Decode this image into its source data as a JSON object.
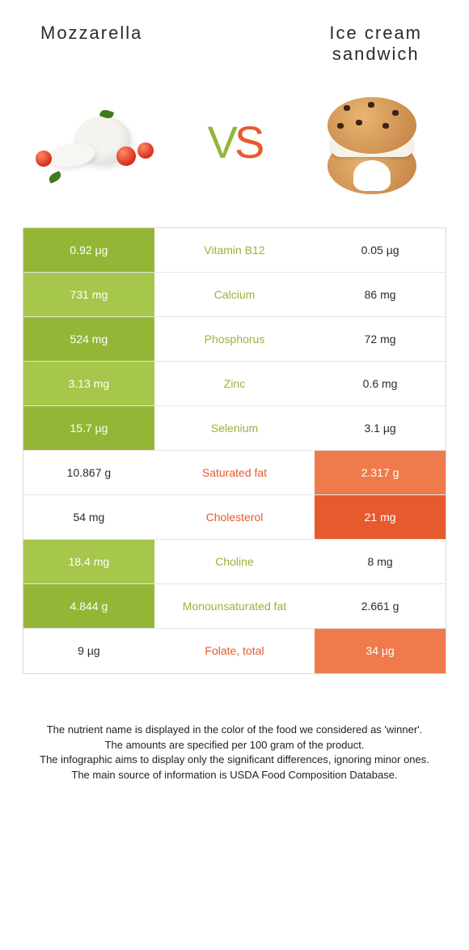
{
  "header": {
    "left_title": "Mozzarella",
    "right_title_line1": "Ice cream",
    "right_title_line2": "sandwich"
  },
  "vs": {
    "v": "V",
    "s": "S"
  },
  "colors": {
    "left_primary": "#94b637",
    "left_secondary": "#a6c64c",
    "right_primary": "#e65a2e",
    "right_secondary": "#ef7b4c",
    "mid_text_left_win": "#94b637",
    "mid_text_right_win": "#e65a2e",
    "left_lose_bg": "#ffffff",
    "right_lose_bg": "#ffffff",
    "left_lose_text": "#2b2b2b",
    "right_lose_text": "#2b2b2b",
    "border": "#d9d9d9"
  },
  "rows": [
    {
      "nutrient": "Vitamin B12",
      "left": "0.92 µg",
      "right": "0.05 µg",
      "winner": "left"
    },
    {
      "nutrient": "Calcium",
      "left": "731 mg",
      "right": "86 mg",
      "winner": "left"
    },
    {
      "nutrient": "Phosphorus",
      "left": "524 mg",
      "right": "72 mg",
      "winner": "left"
    },
    {
      "nutrient": "Zinc",
      "left": "3.13 mg",
      "right": "0.6 mg",
      "winner": "left"
    },
    {
      "nutrient": "Selenium",
      "left": "15.7 µg",
      "right": "3.1 µg",
      "winner": "left"
    },
    {
      "nutrient": "Saturated fat",
      "left": "10.867 g",
      "right": "2.317 g",
      "winner": "right"
    },
    {
      "nutrient": "Cholesterol",
      "left": "54 mg",
      "right": "21 mg",
      "winner": "right"
    },
    {
      "nutrient": "Choline",
      "left": "18.4 mg",
      "right": "8 mg",
      "winner": "left"
    },
    {
      "nutrient": "Monounsaturated fat",
      "left": "4.844 g",
      "right": "2.661 g",
      "winner": "left"
    },
    {
      "nutrient": "Folate, total",
      "left": "9 µg",
      "right": "34 µg",
      "winner": "right"
    }
  ],
  "footer": {
    "l1": "The nutrient name is displayed in the color of the food we considered as 'winner'.",
    "l2": "The amounts are specified per 100 gram of the product.",
    "l3": "The infographic aims to display only the significant differences, ignoring minor ones.",
    "l4": "The main source of information is USDA Food Composition Database."
  }
}
